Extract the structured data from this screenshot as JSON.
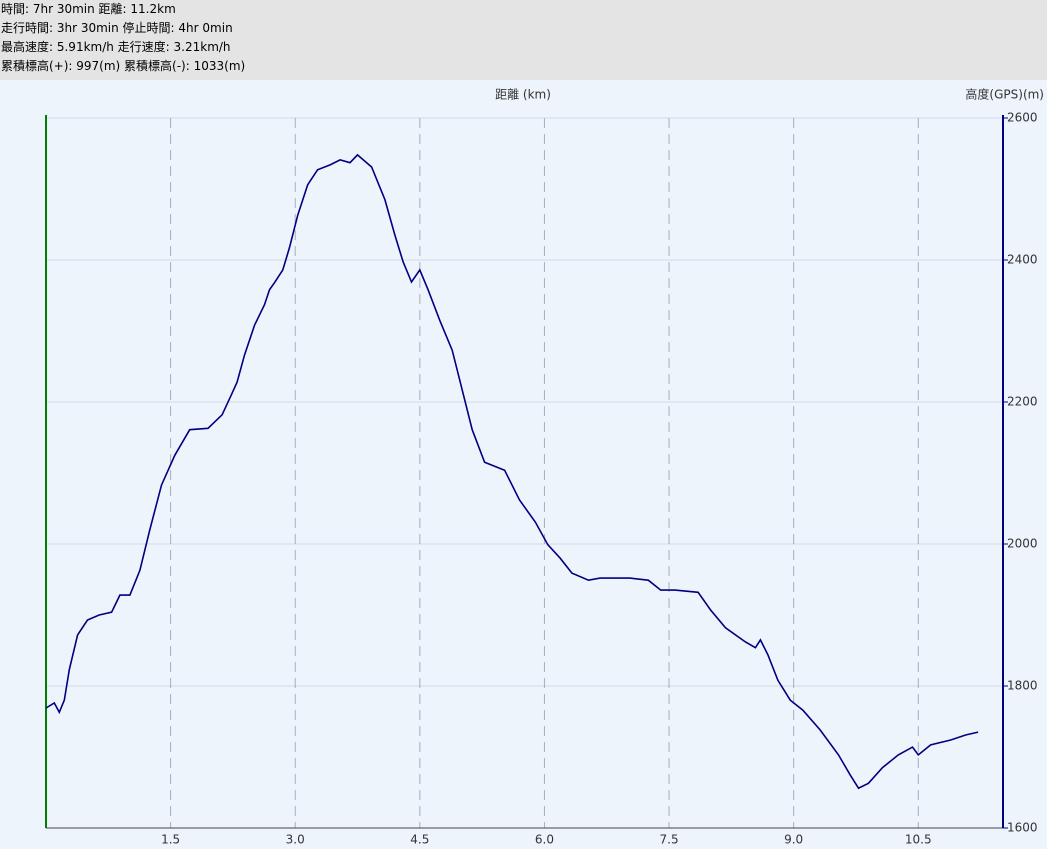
{
  "header": {
    "lines": [
      "時間: 7hr 30min 距離: 11.2km",
      "走行時間: 3hr 30min 停止時間: 4hr 0min",
      "最高速度: 5.91km/h 走行速度: 3.21km/h",
      "累積標高(+): 997(m) 累積標高(-): 1033(m)"
    ]
  },
  "chart_data": {
    "type": "line",
    "x_label": "距離 (km)",
    "y_label": "高度(GPS)(m)",
    "y_axis_position": "right",
    "xlim": [
      0,
      11.52
    ],
    "ylim": [
      1600,
      2600
    ],
    "xticks": [
      {
        "value": 1.5,
        "label": "1.5"
      },
      {
        "value": 3.0,
        "label": "3.0"
      },
      {
        "value": 4.5,
        "label": "4.5"
      },
      {
        "value": 6.0,
        "label": "6.0"
      },
      {
        "value": 7.5,
        "label": "7.5"
      },
      {
        "value": 9.0,
        "label": "9.0"
      },
      {
        "value": 10.5,
        "label": "10.5"
      }
    ],
    "yticks": [
      1600,
      1800,
      2000,
      2200,
      2400,
      2600
    ],
    "grid": true,
    "x": [
      0,
      0.1,
      0.16,
      0.22,
      0.28,
      0.38,
      0.5,
      0.64,
      0.79,
      0.89,
      1.01,
      1.13,
      1.25,
      1.39,
      1.55,
      1.73,
      1.95,
      2.12,
      2.23,
      2.3,
      2.39,
      2.51,
      2.63,
      2.69,
      2.75,
      2.85,
      2.93,
      3.03,
      3.15,
      3.27,
      3.42,
      3.54,
      3.66,
      3.75,
      3.92,
      4.08,
      4.2,
      4.3,
      4.4,
      4.5,
      4.6,
      4.74,
      4.89,
      5.01,
      5.13,
      5.28,
      5.52,
      5.7,
      5.89,
      6.04,
      6.19,
      6.33,
      6.53,
      6.67,
      7.03,
      7.25,
      7.4,
      7.57,
      7.85,
      8.0,
      8.18,
      8.42,
      8.54,
      8.6,
      8.69,
      8.81,
      8.96,
      9.11,
      9.32,
      9.54,
      9.68,
      9.78,
      9.9,
      10.07,
      10.26,
      10.43,
      10.5,
      10.65,
      10.89,
      11.07,
      11.22
    ],
    "series": [
      {
        "name": "高度",
        "color": "#000080",
        "values": [
          1769,
          1776,
          1763,
          1780,
          1823,
          1872,
          1893,
          1900,
          1904,
          1928,
          1928,
          1963,
          2020,
          2083,
          2125,
          2161,
          2163,
          2182,
          2210,
          2228,
          2266,
          2308,
          2337,
          2358,
          2368,
          2386,
          2417,
          2463,
          2506,
          2527,
          2534,
          2541,
          2537,
          2548,
          2531,
          2485,
          2435,
          2397,
          2369,
          2386,
          2358,
          2315,
          2273,
          2217,
          2161,
          2115,
          2104,
          2062,
          2031,
          1999,
          1980,
          1959,
          1949,
          1952,
          1952,
          1949,
          1935,
          1935,
          1932,
          1907,
          1882,
          1862,
          1854,
          1865,
          1844,
          1808,
          1780,
          1766,
          1738,
          1703,
          1675,
          1656,
          1663,
          1685,
          1703,
          1714,
          1703,
          1717,
          1724,
          1731,
          1735
        ]
      }
    ]
  }
}
